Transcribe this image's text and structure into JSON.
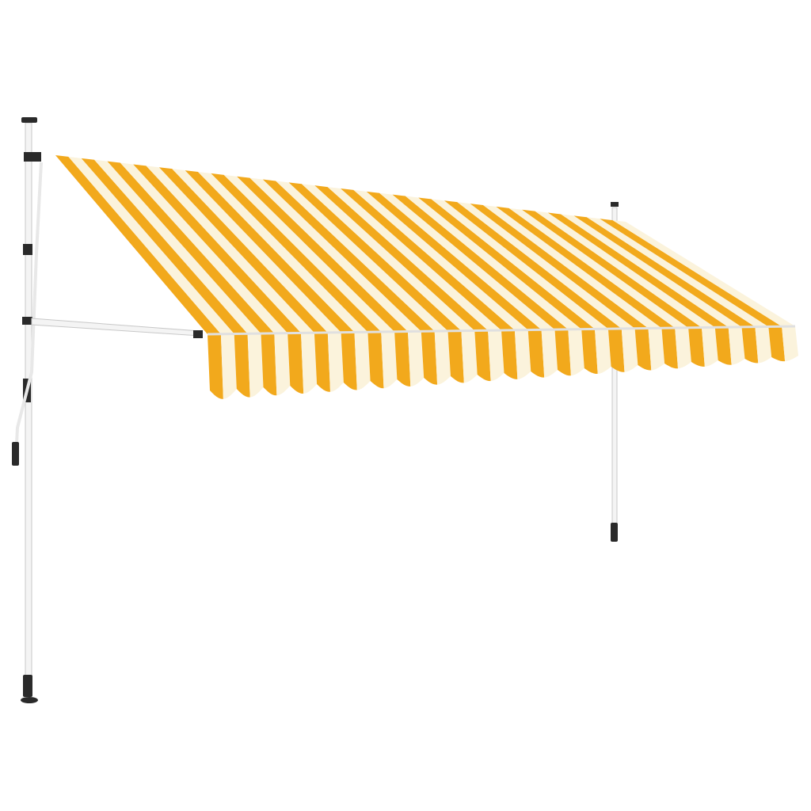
{
  "colors": {
    "background": "#ffffff",
    "stripe_yellow": "#f2a91c",
    "stripe_cream": "#fbf3dc",
    "pole": "#f4f4f4",
    "pole_edge": "#c8c8c8",
    "fitting": "#2a2a2a"
  },
  "awning": {
    "top_stripe_count": 44,
    "valance_stripe_count": 44,
    "scallop_count": 22
  }
}
